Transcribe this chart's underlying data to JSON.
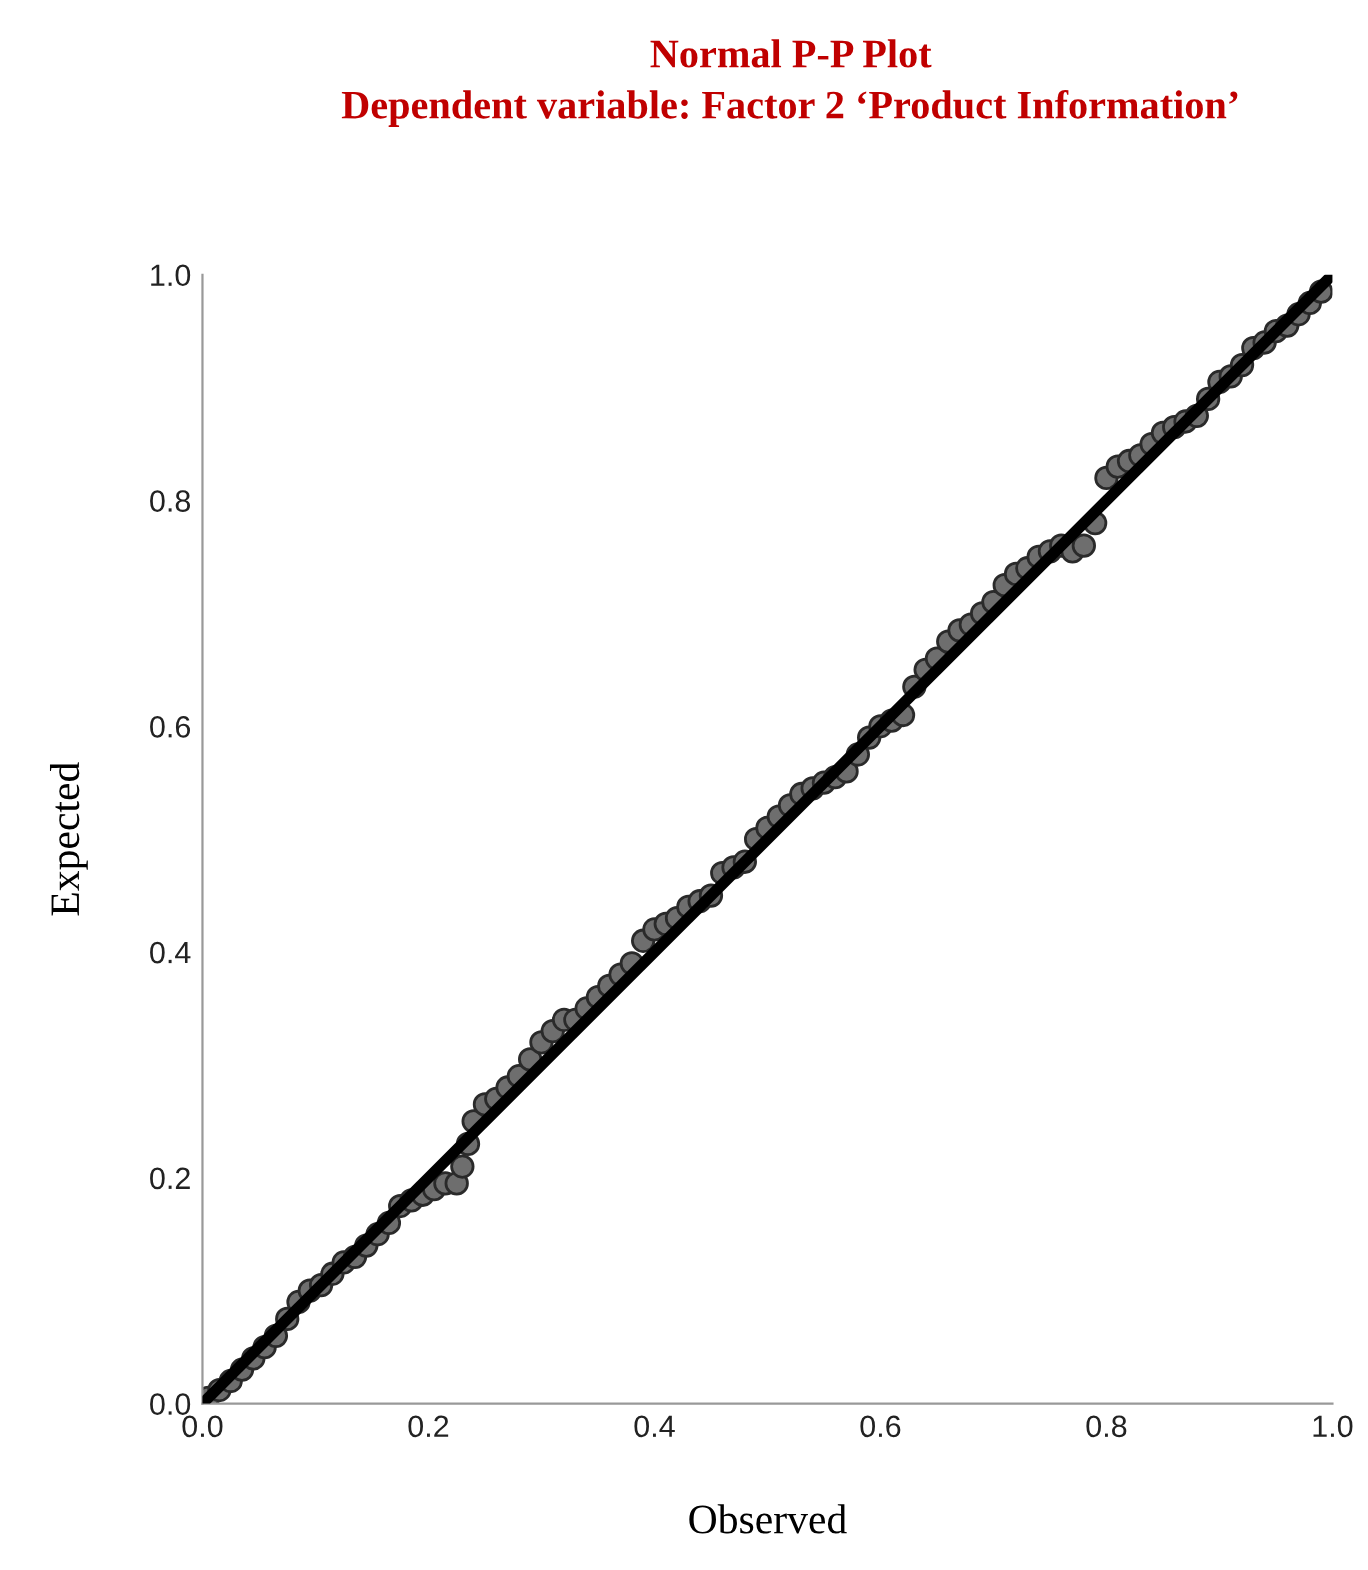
{
  "chart_data": {
    "type": "scatter",
    "title": "Normal P-P Plot\nDependent variable: Factor 2 ‘Product Information’",
    "xlabel": "Observed",
    "ylabel": "Expected",
    "xlim": [
      0,
      1
    ],
    "ylim": [
      0,
      1
    ],
    "xticks": [
      {
        "value": 0,
        "label": "0.0"
      },
      0.2,
      0.4,
      0.6,
      0.8,
      {
        "value": 1,
        "label": "1.0"
      }
    ],
    "yticks": [
      {
        "value": 0,
        "label": "0.0"
      },
      0.2,
      0.4,
      0.6,
      0.8,
      {
        "value": 1,
        "label": "1.0"
      }
    ],
    "grid": false,
    "marker": "circle",
    "series": [
      {
        "color": "#6e6e6e",
        "x": [
          0.005,
          0.015,
          0.025,
          0.035,
          0.045,
          0.055,
          0.065,
          0.075,
          0.085,
          0.095,
          0.105,
          0.115,
          0.125,
          0.135,
          0.145,
          0.155,
          0.165,
          0.175,
          0.185,
          0.195,
          0.205,
          0.215,
          0.225,
          0.23,
          0.235,
          0.24,
          0.25,
          0.26,
          0.27,
          0.28,
          0.29,
          0.3,
          0.31,
          0.32,
          0.33,
          0.34,
          0.35,
          0.36,
          0.37,
          0.38,
          0.39,
          0.4,
          0.41,
          0.42,
          0.43,
          0.44,
          0.45,
          0.46,
          0.47,
          0.48,
          0.49,
          0.5,
          0.51,
          0.52,
          0.53,
          0.54,
          0.55,
          0.56,
          0.57,
          0.58,
          0.59,
          0.6,
          0.61,
          0.62,
          0.63,
          0.64,
          0.65,
          0.66,
          0.67,
          0.68,
          0.69,
          0.7,
          0.71,
          0.72,
          0.73,
          0.74,
          0.75,
          0.76,
          0.77,
          0.78,
          0.79,
          0.8,
          0.81,
          0.82,
          0.83,
          0.84,
          0.85,
          0.86,
          0.87,
          0.88,
          0.89,
          0.9,
          0.91,
          0.92,
          0.93,
          0.94,
          0.95,
          0.96,
          0.97,
          0.98,
          0.99
        ],
        "values": [
          0.005,
          0.012,
          0.02,
          0.03,
          0.04,
          0.05,
          0.06,
          0.075,
          0.09,
          0.1,
          0.105,
          0.115,
          0.125,
          0.13,
          0.14,
          0.15,
          0.16,
          0.175,
          0.18,
          0.185,
          0.19,
          0.195,
          0.195,
          0.21,
          0.23,
          0.25,
          0.265,
          0.27,
          0.28,
          0.29,
          0.305,
          0.32,
          0.33,
          0.34,
          0.34,
          0.35,
          0.36,
          0.37,
          0.38,
          0.39,
          0.41,
          0.42,
          0.425,
          0.43,
          0.44,
          0.445,
          0.45,
          0.47,
          0.475,
          0.48,
          0.5,
          0.51,
          0.52,
          0.53,
          0.54,
          0.545,
          0.55,
          0.555,
          0.56,
          0.575,
          0.59,
          0.6,
          0.605,
          0.61,
          0.635,
          0.65,
          0.66,
          0.675,
          0.685,
          0.69,
          0.7,
          0.71,
          0.725,
          0.735,
          0.74,
          0.75,
          0.755,
          0.76,
          0.755,
          0.76,
          0.78,
          0.82,
          0.83,
          0.835,
          0.84,
          0.85,
          0.86,
          0.865,
          0.87,
          0.875,
          0.89,
          0.905,
          0.91,
          0.92,
          0.935,
          0.94,
          0.95,
          0.955,
          0.965,
          0.975,
          0.985
        ]
      },
      {
        "type": "line",
        "color": "#000000",
        "x": [
          0,
          1
        ],
        "values": [
          0,
          1
        ],
        "marker": "none",
        "line_style": "solid"
      }
    ]
  }
}
